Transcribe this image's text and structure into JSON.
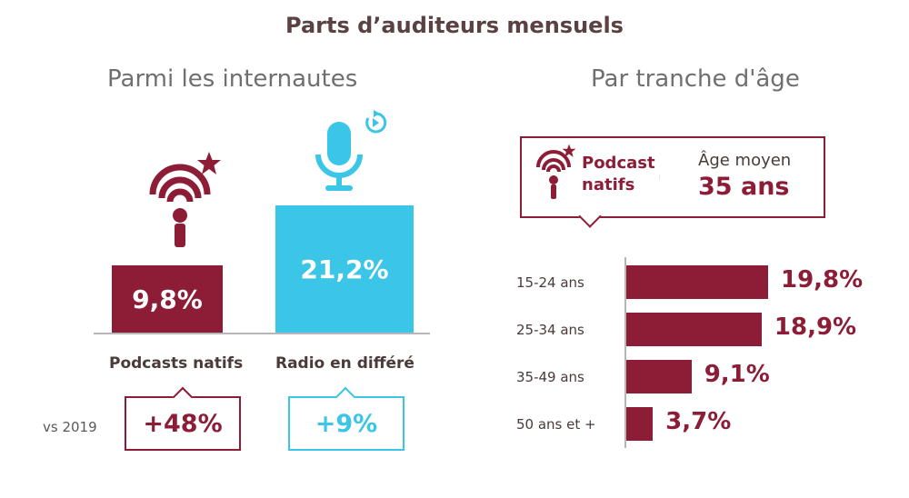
{
  "title": "Parts d’auditeurs mensuels",
  "left_panel": {
    "subtitle": "Parmi les internautes",
    "vs_label": "vs 2019"
  },
  "right_panel": {
    "subtitle": "Par tranche d'âge",
    "callout": {
      "label": "Podcast natifs",
      "age_label": "Âge moyen",
      "age_value": "35 ans"
    }
  },
  "colors": {
    "podcast": "#8d1d36",
    "radio": "#3bc5e6",
    "title": "#5b4242"
  },
  "icons": [
    "podcast-antenna-icon",
    "star-icon",
    "microphone-icon",
    "replay-icon"
  ],
  "chart_data": [
    {
      "type": "bar",
      "categories": [
        "Podcasts natifs",
        "Radio en différé"
      ],
      "values": [
        9.8,
        21.2
      ],
      "value_labels": [
        "9,8%",
        "21,2%"
      ],
      "change_labels": [
        "+48%",
        "+9%"
      ],
      "colors": [
        "#8d1d36",
        "#3bc5e6"
      ]
    },
    {
      "type": "bar",
      "orientation": "horizontal",
      "categories": [
        "15-24 ans",
        "25-34 ans",
        "35-49 ans",
        "50 ans et +"
      ],
      "values": [
        19.8,
        18.9,
        9.1,
        3.7
      ],
      "value_labels": [
        "19,8%",
        "18,9%",
        "9,1%",
        "3,7%"
      ],
      "color": "#8d1d36"
    }
  ]
}
